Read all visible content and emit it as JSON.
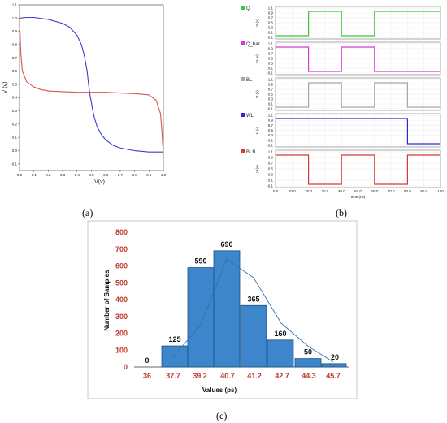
{
  "panel_labels": {
    "a": "(a)",
    "b": "(b)",
    "c": "(c)"
  },
  "chart_data": [
    {
      "type": "line",
      "xlabel": "V(v)",
      "ylabel": "V (v)",
      "xlim": [
        0,
        1.0
      ],
      "ylim": [
        -0.15,
        1.1
      ],
      "x_ticks": [
        "0.0",
        "0.1",
        "0.2",
        "0.3",
        "0.4",
        "0.5",
        "0.6",
        "0.7",
        "0.8",
        "0.9",
        "1.0"
      ],
      "y_ticks": [
        "-0.1",
        "0.0",
        "0.1",
        "0.2",
        "0.3",
        "0.4",
        "0.5",
        "0.6",
        "0.7",
        "0.8",
        "0.9",
        "1.0",
        "1.1"
      ],
      "series": [
        {
          "color": "#3a3fc4",
          "x": [
            0.0,
            0.05,
            0.1,
            0.2,
            0.3,
            0.35,
            0.4,
            0.43,
            0.45,
            0.47,
            0.48,
            0.49,
            0.5,
            0.51,
            0.52,
            0.54,
            0.57,
            0.6,
            0.65,
            0.7,
            0.8,
            0.9,
            1.0
          ],
          "y": [
            1.0,
            1.005,
            1.005,
            0.99,
            0.96,
            0.93,
            0.87,
            0.8,
            0.72,
            0.6,
            0.5,
            0.42,
            0.36,
            0.3,
            0.25,
            0.18,
            0.12,
            0.08,
            0.04,
            0.02,
            0.0,
            -0.01,
            -0.01
          ]
        },
        {
          "color": "#d9534f",
          "x": [
            0.0,
            0.005,
            0.01,
            0.02,
            0.05,
            0.1,
            0.15,
            0.2,
            0.3,
            0.4,
            0.5,
            0.6,
            0.7,
            0.8,
            0.9,
            0.95,
            0.98,
            0.99,
            0.995,
            1.0
          ],
          "y": [
            1.0,
            0.85,
            0.72,
            0.6,
            0.52,
            0.48,
            0.46,
            0.45,
            0.445,
            0.44,
            0.44,
            0.44,
            0.435,
            0.43,
            0.42,
            0.38,
            0.28,
            0.15,
            0.05,
            0.0
          ]
        }
      ]
    },
    {
      "type": "line",
      "xlabel": "time (ns)",
      "x_ticks": [
        "0.0",
        "10.0",
        "20.0",
        "30.0",
        "40.0",
        "50.0",
        "60.0",
        "70.0",
        "80.0",
        "90.0",
        "100"
      ],
      "xlim": [
        0,
        100
      ],
      "signals": [
        {
          "name": "Q",
          "color": "#3cc43c",
          "ticks": [
            "1.1",
            "0.9",
            "0.7",
            "0.5",
            "0.3",
            "0.1",
            "-0.1"
          ],
          "t": [
            0,
            20,
            20,
            40,
            40,
            60,
            60,
            100
          ],
          "v": [
            0,
            0,
            1,
            1,
            0,
            0,
            1,
            1
          ]
        },
        {
          "name": "Q_bar",
          "color": "#d63ad6",
          "ticks": [
            "1.1",
            "0.9",
            "0.7",
            "0.5",
            "0.3",
            "0.1",
            "-0.1"
          ],
          "t": [
            0,
            20,
            20,
            40,
            40,
            60,
            60,
            100
          ],
          "v": [
            1,
            1,
            0,
            0,
            1,
            1,
            0,
            0
          ]
        },
        {
          "name": "BL",
          "color": "#a6a6a6",
          "ticks": [
            "1.1",
            "0.9",
            "0.7",
            "0.5",
            "0.3",
            "0.1",
            "-0.1"
          ],
          "t": [
            0,
            20,
            20,
            40,
            40,
            60,
            60,
            80,
            80,
            100
          ],
          "v": [
            0,
            0,
            1,
            1,
            0,
            0,
            1,
            1,
            0,
            0
          ]
        },
        {
          "name": "WL",
          "color": "#2a2ad0",
          "ticks": [
            "1.1",
            "0.9",
            "0.7",
            "0.5",
            "0.3",
            "0.1",
            "-0.1"
          ],
          "t": [
            0,
            80,
            80,
            100
          ],
          "v": [
            1,
            1,
            0,
            0
          ]
        },
        {
          "name": "BLB",
          "color": "#d03a3a",
          "ticks": [
            "1.1",
            "0.9",
            "0.7",
            "0.5",
            "0.3",
            "0.1",
            "-0.1"
          ],
          "t": [
            0,
            20,
            20,
            40,
            40,
            60,
            60,
            80,
            80,
            100
          ],
          "v": [
            1,
            1,
            0,
            0,
            1,
            1,
            0,
            0,
            1,
            1
          ]
        }
      ],
      "ylabel": "V (v)"
    },
    {
      "type": "bar",
      "xlabel": "Values (ps)",
      "ylabel": "Number of Samples",
      "ylim": [
        0,
        800
      ],
      "y_ticks": [
        "0",
        "100",
        "200",
        "300",
        "400",
        "500",
        "600",
        "700",
        "800"
      ],
      "x_ticks": [
        "36",
        "37.7",
        "39.2",
        "40.7",
        "41.2",
        "42.7",
        "44.3",
        "45.7"
      ],
      "values": [
        0,
        125,
        590,
        690,
        365,
        160,
        50,
        20
      ],
      "data_labels": [
        "0",
        "125",
        "590",
        "690",
        "365",
        "160",
        "50",
        "20"
      ],
      "fit_line": [
        60,
        250,
        640,
        530,
        260,
        120,
        30
      ]
    }
  ],
  "colors": {
    "bar_fill": "#3d86cc",
    "bar_stroke": "#1f4f80",
    "fit": "#2f6fb0",
    "tick_red": "#c0392b"
  }
}
